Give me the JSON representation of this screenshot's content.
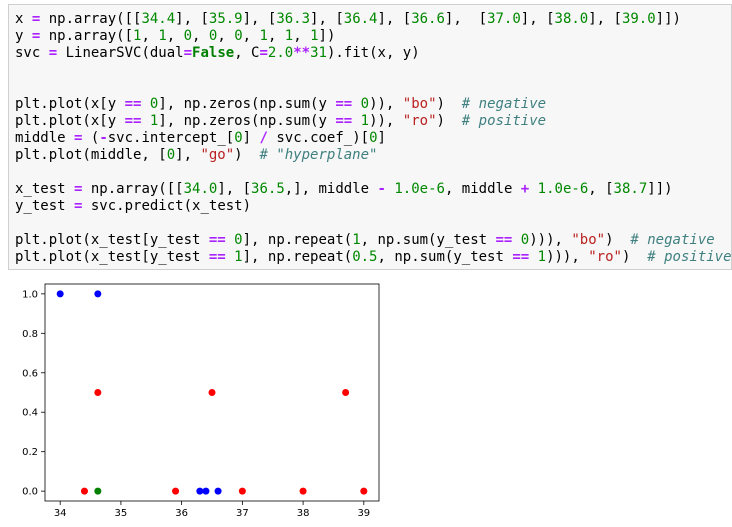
{
  "code_lines": [
    [
      [
        "x ",
        ""
      ],
      [
        "=",
        "op"
      ],
      [
        " np.array([[",
        ""
      ],
      [
        "34.4",
        "num"
      ],
      [
        "], [",
        ""
      ],
      [
        "35.9",
        "num"
      ],
      [
        "], [",
        ""
      ],
      [
        "36.3",
        "num"
      ],
      [
        "], [",
        ""
      ],
      [
        "36.4",
        "num"
      ],
      [
        "], [",
        ""
      ],
      [
        "36.6",
        "num"
      ],
      [
        "],  [",
        ""
      ],
      [
        "37.0",
        "num"
      ],
      [
        "], [",
        ""
      ],
      [
        "38.0",
        "num"
      ],
      [
        "], [",
        ""
      ],
      [
        "39.0",
        "num"
      ],
      [
        "]])",
        ""
      ]
    ],
    [
      [
        "y ",
        ""
      ],
      [
        "=",
        "op"
      ],
      [
        " np.array([",
        ""
      ],
      [
        "1",
        "num"
      ],
      [
        ", ",
        ""
      ],
      [
        "1",
        "num"
      ],
      [
        ", ",
        ""
      ],
      [
        "0",
        "num"
      ],
      [
        ", ",
        ""
      ],
      [
        "0",
        "num"
      ],
      [
        ", ",
        ""
      ],
      [
        "0",
        "num"
      ],
      [
        ", ",
        ""
      ],
      [
        "1",
        "num"
      ],
      [
        ", ",
        ""
      ],
      [
        "1",
        "num"
      ],
      [
        ", ",
        ""
      ],
      [
        "1",
        "num"
      ],
      [
        "])",
        ""
      ]
    ],
    [
      [
        "svc ",
        ""
      ],
      [
        "=",
        "op"
      ],
      [
        " LinearSVC(dual",
        ""
      ],
      [
        "=",
        "op"
      ],
      [
        "False",
        "kw"
      ],
      [
        ", C",
        ""
      ],
      [
        "=",
        "op"
      ],
      [
        "2.0",
        "num"
      ],
      [
        "**",
        "op"
      ],
      [
        "31",
        "num"
      ],
      [
        ").fit(x, y)",
        ""
      ]
    ],
    [],
    [],
    [
      [
        "plt.plot(x[y ",
        ""
      ],
      [
        "==",
        "op"
      ],
      [
        " ",
        ""
      ],
      [
        "0",
        "num"
      ],
      [
        "], np.zeros(np.sum(y ",
        ""
      ],
      [
        "==",
        "op"
      ],
      [
        " ",
        ""
      ],
      [
        "0",
        "num"
      ],
      [
        ")), ",
        ""
      ],
      [
        "\"bo\"",
        "str"
      ],
      [
        ")  ",
        ""
      ],
      [
        "# negative",
        "com"
      ]
    ],
    [
      [
        "plt.plot(x[y ",
        ""
      ],
      [
        "==",
        "op"
      ],
      [
        " ",
        ""
      ],
      [
        "1",
        "num"
      ],
      [
        "], np.zeros(np.sum(y ",
        ""
      ],
      [
        "==",
        "op"
      ],
      [
        " ",
        ""
      ],
      [
        "1",
        "num"
      ],
      [
        ")), ",
        ""
      ],
      [
        "\"ro\"",
        "str"
      ],
      [
        ")  ",
        ""
      ],
      [
        "# positive",
        "com"
      ]
    ],
    [
      [
        "middle ",
        ""
      ],
      [
        "=",
        "op"
      ],
      [
        " (",
        ""
      ],
      [
        "-",
        "op"
      ],
      [
        "svc.intercept_[",
        ""
      ],
      [
        "0",
        "num"
      ],
      [
        "] ",
        ""
      ],
      [
        "/",
        "op"
      ],
      [
        " svc.coef_)[",
        ""
      ],
      [
        "0",
        "num"
      ],
      [
        "]",
        ""
      ]
    ],
    [
      [
        "plt.plot(middle, [",
        ""
      ],
      [
        "0",
        "num"
      ],
      [
        "], ",
        ""
      ],
      [
        "\"go\"",
        "str"
      ],
      [
        ")  ",
        ""
      ],
      [
        "# \"hyperplane\"",
        "com"
      ]
    ],
    [],
    [
      [
        "x_test ",
        ""
      ],
      [
        "=",
        "op"
      ],
      [
        " np.array([[",
        ""
      ],
      [
        "34.0",
        "num"
      ],
      [
        "], [",
        ""
      ],
      [
        "36.5",
        "num"
      ],
      [
        ",], middle ",
        ""
      ],
      [
        "-",
        "op"
      ],
      [
        " ",
        ""
      ],
      [
        "1.0e-6",
        "num"
      ],
      [
        ", middle ",
        ""
      ],
      [
        "+",
        "op"
      ],
      [
        " ",
        ""
      ],
      [
        "1.0e-6",
        "num"
      ],
      [
        ", [",
        ""
      ],
      [
        "38.7",
        "num"
      ],
      [
        "]])",
        ""
      ]
    ],
    [
      [
        "y_test ",
        ""
      ],
      [
        "=",
        "op"
      ],
      [
        " svc.predict(x_test)",
        ""
      ]
    ],
    [],
    [
      [
        "plt.plot(x_test[y_test ",
        ""
      ],
      [
        "==",
        "op"
      ],
      [
        " ",
        ""
      ],
      [
        "0",
        "num"
      ],
      [
        "], np.repeat(",
        ""
      ],
      [
        "1",
        "num"
      ],
      [
        ", np.sum(y_test ",
        ""
      ],
      [
        "==",
        "op"
      ],
      [
        " ",
        ""
      ],
      [
        "0",
        "num"
      ],
      [
        "))), ",
        ""
      ],
      [
        "\"bo\"",
        "str"
      ],
      [
        ")  ",
        ""
      ],
      [
        "# negative",
        "com"
      ]
    ],
    [
      [
        "plt.plot(x_test[y_test ",
        ""
      ],
      [
        "==",
        "op"
      ],
      [
        " ",
        ""
      ],
      [
        "1",
        "num"
      ],
      [
        "], np.repeat(",
        ""
      ],
      [
        "0.5",
        "num"
      ],
      [
        ", np.sum(y_test ",
        ""
      ],
      [
        "==",
        "op"
      ],
      [
        " ",
        ""
      ],
      [
        "1",
        "num"
      ],
      [
        "))), ",
        ""
      ],
      [
        "\"ro\"",
        "str"
      ],
      [
        ")  ",
        ""
      ],
      [
        "# positive",
        "com"
      ]
    ]
  ],
  "colors": {
    "blue": "#0000ff",
    "red": "#ff0000",
    "green": "#008000"
  },
  "chart_data": {
    "type": "scatter",
    "xlim": [
      33.75,
      39.25
    ],
    "ylim": [
      -0.05,
      1.05
    ],
    "xticks": [
      34,
      35,
      36,
      37,
      38,
      39
    ],
    "yticks": [
      0.0,
      0.2,
      0.4,
      0.6,
      0.8,
      1.0
    ],
    "ytick_labels": [
      "0.0",
      "0.2",
      "0.4",
      "0.6",
      "0.8",
      "1.0"
    ],
    "xtick_labels": [
      "34",
      "35",
      "36",
      "37",
      "38",
      "39"
    ],
    "grid": false,
    "series": [
      {
        "color": "#0000ff",
        "x": [
          36.3,
          36.4,
          36.6
        ],
        "y": [
          0,
          0,
          0
        ]
      },
      {
        "color": "#ff0000",
        "x": [
          34.4,
          35.9,
          37.0,
          38.0,
          39.0
        ],
        "y": [
          0,
          0,
          0,
          0,
          0
        ]
      },
      {
        "color": "#008000",
        "x": [
          34.62
        ],
        "y": [
          0
        ]
      },
      {
        "color": "#0000ff",
        "x": [
          34.0,
          34.62
        ],
        "y": [
          1,
          1
        ]
      },
      {
        "color": "#ff0000",
        "x": [
          34.62,
          36.5,
          38.7
        ],
        "y": [
          0.5,
          0.5,
          0.5
        ]
      }
    ]
  }
}
